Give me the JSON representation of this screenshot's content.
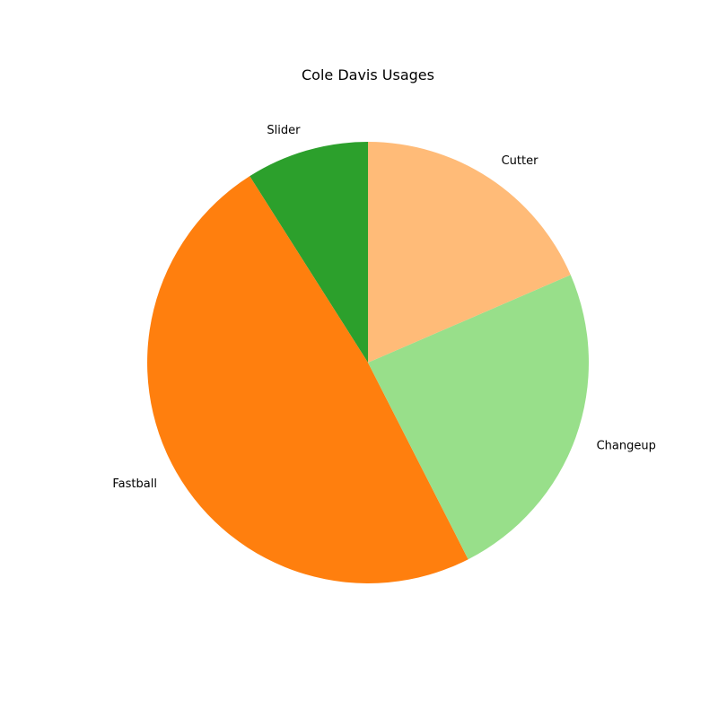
{
  "chart_data": {
    "type": "pie",
    "title": "Cole Davis Usages",
    "start_angle_deg": 90,
    "direction": "counterclockwise",
    "slices": [
      {
        "label": "Slider",
        "value": 9.0,
        "color": "#2ca02c"
      },
      {
        "label": "Fastball",
        "value": 48.5,
        "color": "#ff7f0e"
      },
      {
        "label": "Changeup",
        "value": 24.0,
        "color": "#98df8a"
      },
      {
        "label": "Cutter",
        "value": 18.5,
        "color": "#ffbb78"
      }
    ]
  }
}
